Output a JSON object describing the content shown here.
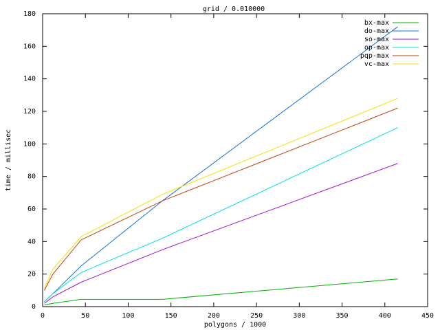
{
  "chart_data": {
    "type": "line",
    "title": "grid / 0.010000",
    "x_label": "polygons / 1000",
    "y_label": "time / millisec",
    "x": [
      2,
      12,
      45,
      140,
      415
    ],
    "series": [
      {
        "name": "bx-max",
        "color": "#00b000",
        "values": [
          1,
          2,
          4.5,
          4.5,
          17
        ]
      },
      {
        "name": "do-max",
        "color": "#1070d8",
        "values": [
          3,
          8,
          25,
          65,
          172
        ]
      },
      {
        "name": "so-max",
        "color": "#a010d0",
        "values": [
          2,
          6,
          15,
          35,
          88
        ]
      },
      {
        "name": "op-max",
        "color": "#00e0e8",
        "values": [
          3,
          8,
          21,
          42,
          110
        ]
      },
      {
        "name": "pqp-max",
        "color": "#c04010",
        "values": [
          10,
          20,
          41,
          65,
          122
        ]
      },
      {
        "name": "vc-max",
        "color": "#f0e000",
        "values": [
          11,
          23,
          43,
          69,
          128
        ]
      }
    ],
    "xlim": [
      0,
      450
    ],
    "xticks": [
      0,
      50,
      100,
      150,
      200,
      250,
      300,
      350,
      400,
      450
    ],
    "ylim": [
      0,
      180
    ],
    "yticks": [
      0,
      20,
      40,
      60,
      80,
      100,
      120,
      140,
      160,
      180
    ],
    "grid": false,
    "legend": "top-right"
  }
}
